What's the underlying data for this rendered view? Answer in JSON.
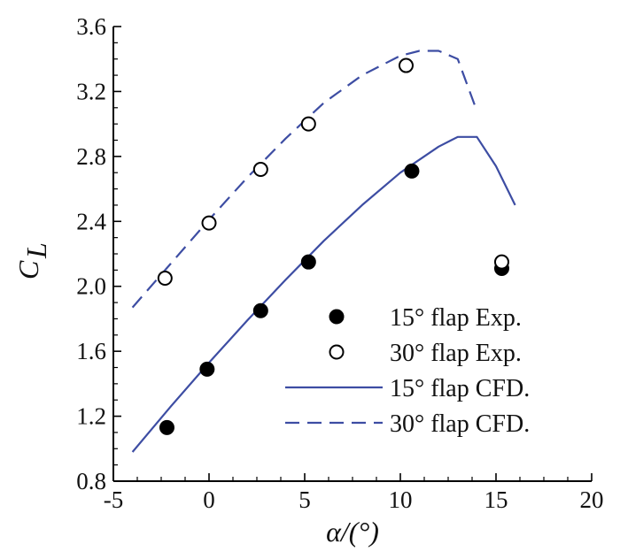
{
  "chart_data": {
    "type": "scatter",
    "title": "",
    "xlabel": "α/(°)",
    "ylabel_main": "C",
    "ylabel_sub": "L",
    "xlim": [
      -5,
      20
    ],
    "ylim": [
      0.8,
      3.6
    ],
    "xticks": [
      -5,
      0,
      5,
      10,
      15,
      20
    ],
    "yticks": [
      0.8,
      1.2,
      1.6,
      2.0,
      2.4,
      2.8,
      3.2,
      3.6
    ],
    "xtick_labels": [
      "-5",
      "0",
      "5",
      "10",
      "15",
      "20"
    ],
    "ytick_labels": [
      "0.8",
      "1.2",
      "1.6",
      "2.0",
      "2.4",
      "2.8",
      "3.2",
      "3.6"
    ],
    "grid": false,
    "legend_position": "lower-right",
    "colors": {
      "cfd": "#3d4da3",
      "marker": "#000000"
    },
    "series": [
      {
        "name": "15° flap Exp.",
        "kind": "marker-filled",
        "x": [
          -2.2,
          -0.1,
          2.7,
          5.2,
          10.6,
          15.3
        ],
        "y": [
          1.13,
          1.49,
          1.85,
          2.15,
          2.71,
          2.11
        ]
      },
      {
        "name": "30° flap Exp.",
        "kind": "marker-open",
        "x": [
          -2.3,
          0.0,
          2.7,
          5.2,
          10.3,
          15.3
        ],
        "y": [
          2.05,
          2.39,
          2.72,
          3.0,
          3.36,
          2.15
        ]
      },
      {
        "name": "15° flap CFD.",
        "kind": "line-solid",
        "x": [
          -4.0,
          -2.0,
          0.0,
          2.0,
          4.0,
          6.0,
          8.0,
          10.0,
          12.0,
          13.0,
          14.0,
          15.0,
          16.0
        ],
        "y": [
          0.98,
          1.26,
          1.53,
          1.79,
          2.04,
          2.28,
          2.5,
          2.7,
          2.86,
          2.92,
          2.92,
          2.74,
          2.5
        ]
      },
      {
        "name": "30° flap CFD.",
        "kind": "line-dashed",
        "x": [
          -4.0,
          -2.0,
          0.0,
          2.0,
          4.0,
          6.0,
          8.0,
          10.0,
          11.0,
          12.0,
          13.0,
          14.0
        ],
        "y": [
          1.87,
          2.14,
          2.41,
          2.67,
          2.91,
          3.13,
          3.3,
          3.42,
          3.45,
          3.45,
          3.4,
          3.08
        ]
      }
    ]
  }
}
